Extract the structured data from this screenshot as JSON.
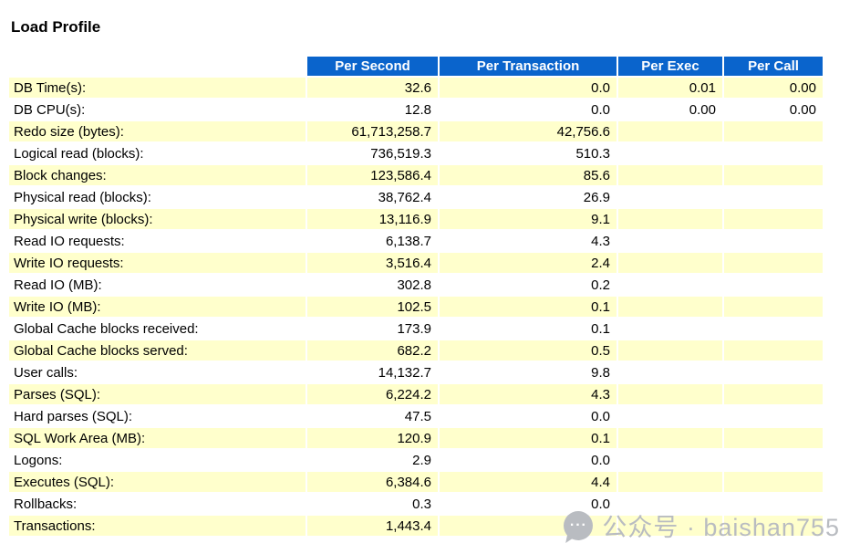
{
  "title": "Load Profile",
  "colors": {
    "header_bg": "#0a64cc",
    "row_odd_bg": "#ffffcc",
    "row_even_bg": "#ffffff"
  },
  "table": {
    "columns": [
      "Per Second",
      "Per Transaction",
      "Per Exec",
      "Per Call"
    ],
    "rows": [
      {
        "label": "DB Time(s):",
        "per_second": "32.6",
        "per_transaction": "0.0",
        "per_exec": "0.01",
        "per_call": "0.00"
      },
      {
        "label": "DB CPU(s):",
        "per_second": "12.8",
        "per_transaction": "0.0",
        "per_exec": "0.00",
        "per_call": "0.00"
      },
      {
        "label": "Redo size (bytes):",
        "per_second": "61,713,258.7",
        "per_transaction": "42,756.6",
        "per_exec": "",
        "per_call": ""
      },
      {
        "label": "Logical read (blocks):",
        "per_second": "736,519.3",
        "per_transaction": "510.3",
        "per_exec": "",
        "per_call": ""
      },
      {
        "label": "Block changes:",
        "per_second": "123,586.4",
        "per_transaction": "85.6",
        "per_exec": "",
        "per_call": ""
      },
      {
        "label": "Physical read (blocks):",
        "per_second": "38,762.4",
        "per_transaction": "26.9",
        "per_exec": "",
        "per_call": ""
      },
      {
        "label": "Physical write (blocks):",
        "per_second": "13,116.9",
        "per_transaction": "9.1",
        "per_exec": "",
        "per_call": ""
      },
      {
        "label": "Read IO requests:",
        "per_second": "6,138.7",
        "per_transaction": "4.3",
        "per_exec": "",
        "per_call": ""
      },
      {
        "label": "Write IO requests:",
        "per_second": "3,516.4",
        "per_transaction": "2.4",
        "per_exec": "",
        "per_call": ""
      },
      {
        "label": "Read IO (MB):",
        "per_second": "302.8",
        "per_transaction": "0.2",
        "per_exec": "",
        "per_call": ""
      },
      {
        "label": "Write IO (MB):",
        "per_second": "102.5",
        "per_transaction": "0.1",
        "per_exec": "",
        "per_call": ""
      },
      {
        "label": "Global Cache blocks received:",
        "per_second": "173.9",
        "per_transaction": "0.1",
        "per_exec": "",
        "per_call": ""
      },
      {
        "label": "Global Cache blocks served:",
        "per_second": "682.2",
        "per_transaction": "0.5",
        "per_exec": "",
        "per_call": ""
      },
      {
        "label": "User calls:",
        "per_second": "14,132.7",
        "per_transaction": "9.8",
        "per_exec": "",
        "per_call": ""
      },
      {
        "label": "Parses (SQL):",
        "per_second": "6,224.2",
        "per_transaction": "4.3",
        "per_exec": "",
        "per_call": ""
      },
      {
        "label": "Hard parses (SQL):",
        "per_second": "47.5",
        "per_transaction": "0.0",
        "per_exec": "",
        "per_call": ""
      },
      {
        "label": "SQL Work Area (MB):",
        "per_second": "120.9",
        "per_transaction": "0.1",
        "per_exec": "",
        "per_call": ""
      },
      {
        "label": "Logons:",
        "per_second": "2.9",
        "per_transaction": "0.0",
        "per_exec": "",
        "per_call": ""
      },
      {
        "label": "Executes (SQL):",
        "per_second": "6,384.6",
        "per_transaction": "4.4",
        "per_exec": "",
        "per_call": ""
      },
      {
        "label": "Rollbacks:",
        "per_second": "0.3",
        "per_transaction": "0.0",
        "per_exec": "",
        "per_call": ""
      },
      {
        "label": "Transactions:",
        "per_second": "1,443.4",
        "per_transaction": "",
        "per_exec": "",
        "per_call": ""
      }
    ]
  },
  "watermark": {
    "icon": "chat-bubble-icon",
    "icon_glyph": "···",
    "text": "公众号 · baishan755"
  }
}
